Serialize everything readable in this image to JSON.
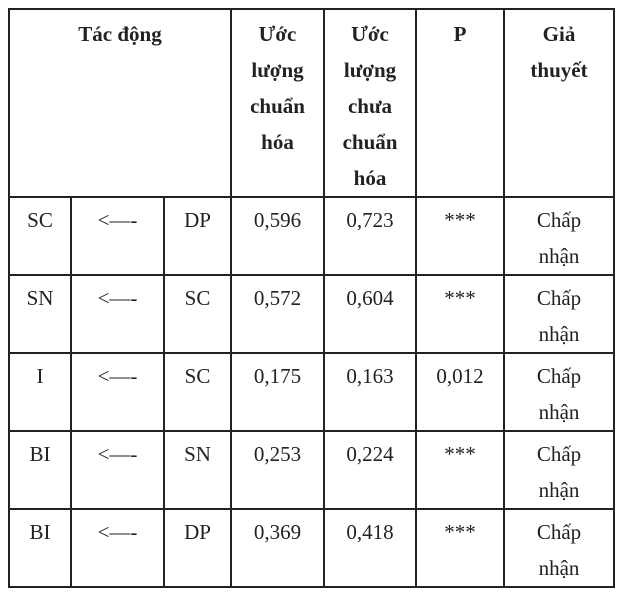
{
  "table": {
    "header": [
      [
        "Tác động"
      ],
      [
        "Ước",
        "lượng",
        "chuẩn",
        "hóa"
      ],
      [
        "Ước",
        "lượng",
        "chưa",
        "chuẩn",
        "hóa"
      ],
      [
        "P"
      ],
      [
        "Giả",
        "thuyết"
      ]
    ],
    "rows": [
      [
        "SC",
        "<—-",
        "DP",
        "0,596",
        "0,723",
        "***",
        "Chấp nhận"
      ],
      [
        "SN",
        "<—-",
        "SC",
        "0,572",
        "0,604",
        "***",
        "Chấp nhận"
      ],
      [
        "I",
        "<—-",
        "SC",
        "0,175",
        "0,163",
        "0,012",
        "Chấp nhận"
      ],
      [
        "BI",
        "<—-",
        "SN",
        "0,253",
        "0,224",
        "***",
        "Chấp nhận"
      ],
      [
        "BI",
        "<—-",
        "DP",
        "0,369",
        "0,418",
        "***",
        "Chấp nhận"
      ]
    ]
  }
}
